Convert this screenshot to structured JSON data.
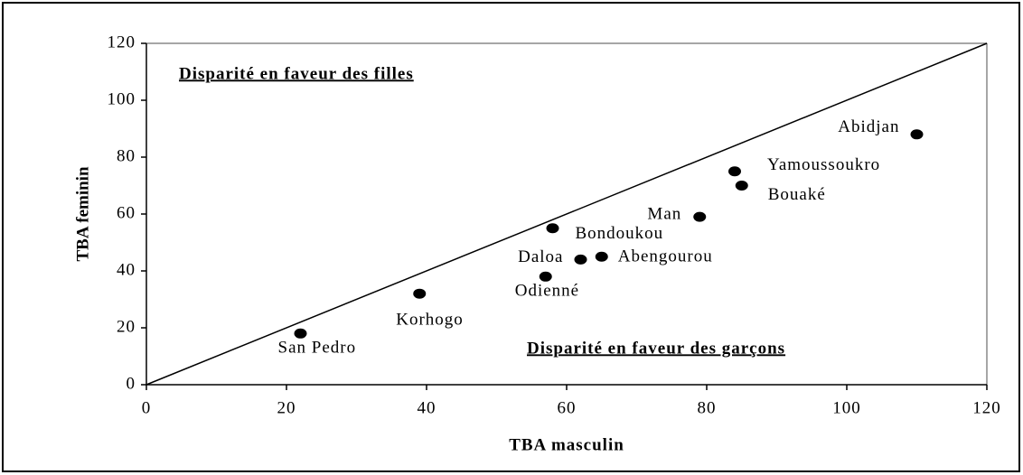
{
  "chart_data": {
    "type": "scatter",
    "x_label": "TBA masculin",
    "y_label": "TBA feminin",
    "annotations": [
      "Disparité en faveur des filles",
      "Disparité en faveur des garçons"
    ],
    "labels": [
      "San Pedro",
      "Korhogo",
      "Odienné",
      "Bondoukou",
      "Daloa",
      "Abengourou",
      "Man",
      "Yamoussoukro",
      "Bouaké",
      "Abidjan"
    ],
    "x": [
      22,
      39,
      57,
      58,
      62,
      65,
      79,
      84,
      85,
      110
    ],
    "values": [
      18,
      32,
      38,
      55,
      44,
      45,
      59,
      75,
      70,
      88
    ],
    "color": "#000000",
    "xlim": [
      0,
      120
    ],
    "xticks": [
      0,
      20,
      40,
      60,
      80,
      100,
      120
    ],
    "ylim": [
      0,
      120
    ],
    "yticks": [
      0,
      20,
      40,
      60,
      80,
      100,
      120
    ]
  }
}
